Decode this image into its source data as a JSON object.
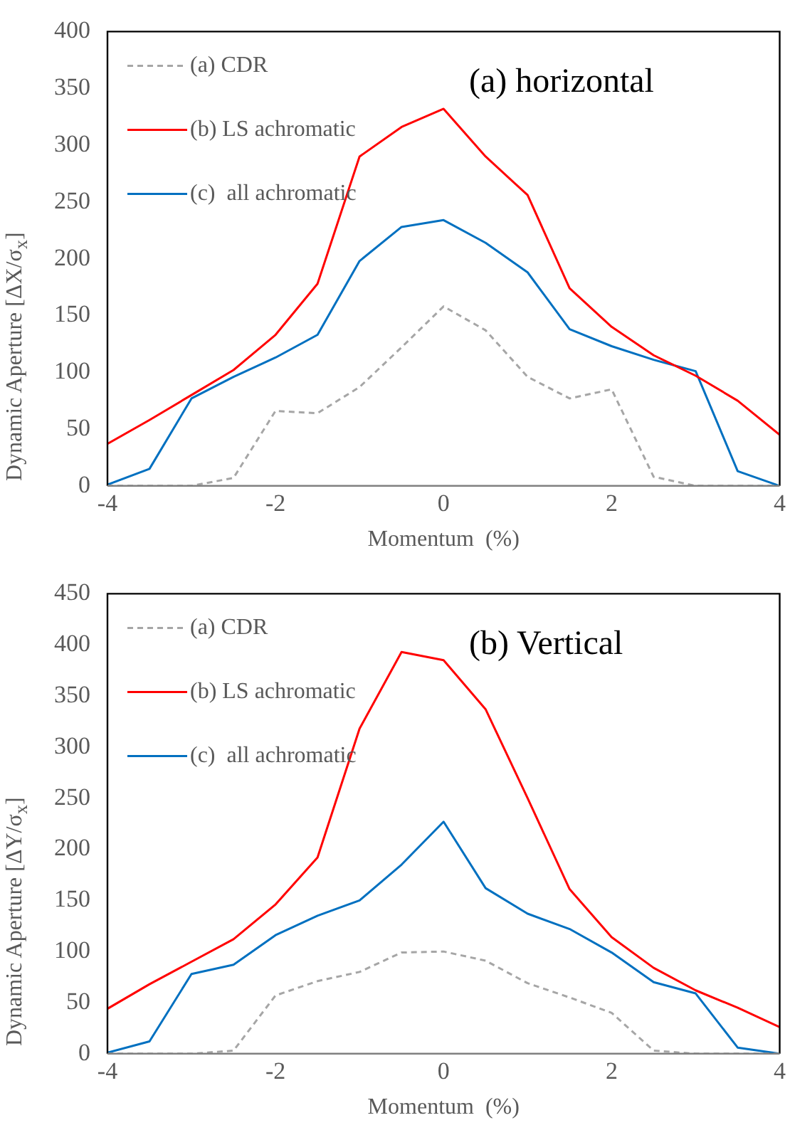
{
  "chart_data": [
    {
      "type": "line",
      "annotations": [
        "(a) horizontal"
      ],
      "xlabel": "Momentum  (%)",
      "ylabel": "Dynamic  Aperture [ΔX/σ$_{x}$]",
      "x": [
        -4,
        -3.5,
        -3,
        -2.5,
        -2,
        -1.5,
        -1,
        -0.5,
        0,
        0.5,
        1,
        1.5,
        2,
        2.5,
        3,
        3.5,
        4
      ],
      "series": [
        {
          "name": "(a) CDR",
          "color": "#a6a6a6",
          "line_style": "dashed",
          "values": [
            0,
            0,
            0,
            7,
            66,
            64,
            87,
            122,
            158,
            137,
            96,
            77,
            85,
            8,
            0,
            0,
            0
          ]
        },
        {
          "name": "(b) LS achromatic",
          "color": "#ff0000",
          "line_style": "solid",
          "values": [
            37,
            58,
            80,
            102,
            133,
            178,
            290,
            316,
            332,
            290,
            256,
            174,
            140,
            115,
            97,
            75,
            45
          ]
        },
        {
          "name": "(c)  all achromatic",
          "color": "#0070c0",
          "line_style": "solid",
          "values": [
            1,
            15,
            77,
            96,
            113,
            133,
            198,
            228,
            234,
            214,
            188,
            138,
            123,
            111,
            101,
            13,
            0
          ]
        }
      ],
      "xlim": [
        -4,
        4
      ],
      "xticks": [
        -4,
        -2,
        0,
        2,
        4
      ],
      "ylim": [
        0,
        400
      ],
      "yticks": [
        0,
        50,
        100,
        150,
        200,
        250,
        300,
        350,
        400
      ],
      "grid": false,
      "legend": "top left",
      "marker": "none"
    },
    {
      "type": "line",
      "annotations": [
        "(b) Vertical"
      ],
      "xlabel": "Momentum  (%)",
      "ylabel": "Dynamic  Aperture [ΔY/σ$_{x}$]",
      "x": [
        -4,
        -3.5,
        -3,
        -2.5,
        -2,
        -1.5,
        -1,
        -0.5,
        0,
        0.5,
        1,
        1.5,
        2,
        2.5,
        3,
        3.5,
        4
      ],
      "series": [
        {
          "name": "(a) CDR",
          "color": "#a6a6a6",
          "line_style": "dashed",
          "values": [
            0,
            0,
            0,
            3,
            57,
            71,
            80,
            99,
            100,
            91,
            69,
            55,
            40,
            3,
            0,
            0,
            0
          ]
        },
        {
          "name": "(b) LS achromatic",
          "color": "#ff0000",
          "line_style": "solid",
          "values": [
            44,
            68,
            90,
            112,
            146,
            192,
            318,
            393,
            385,
            337,
            250,
            161,
            114,
            84,
            62,
            45,
            26
          ]
        },
        {
          "name": "(c)  all achromatic",
          "color": "#0070c0",
          "line_style": "solid",
          "values": [
            1,
            12,
            78,
            87,
            116,
            135,
            150,
            185,
            227,
            162,
            137,
            122,
            99,
            70,
            59,
            6,
            0
          ]
        }
      ],
      "xlim": [
        -4,
        4
      ],
      "xticks": [
        -4,
        -2,
        0,
        2,
        4
      ],
      "ylim": [
        0,
        450
      ],
      "yticks": [
        0,
        50,
        100,
        150,
        200,
        250,
        300,
        350,
        400,
        450
      ],
      "grid": false,
      "legend": "top left",
      "marker": "none"
    }
  ]
}
